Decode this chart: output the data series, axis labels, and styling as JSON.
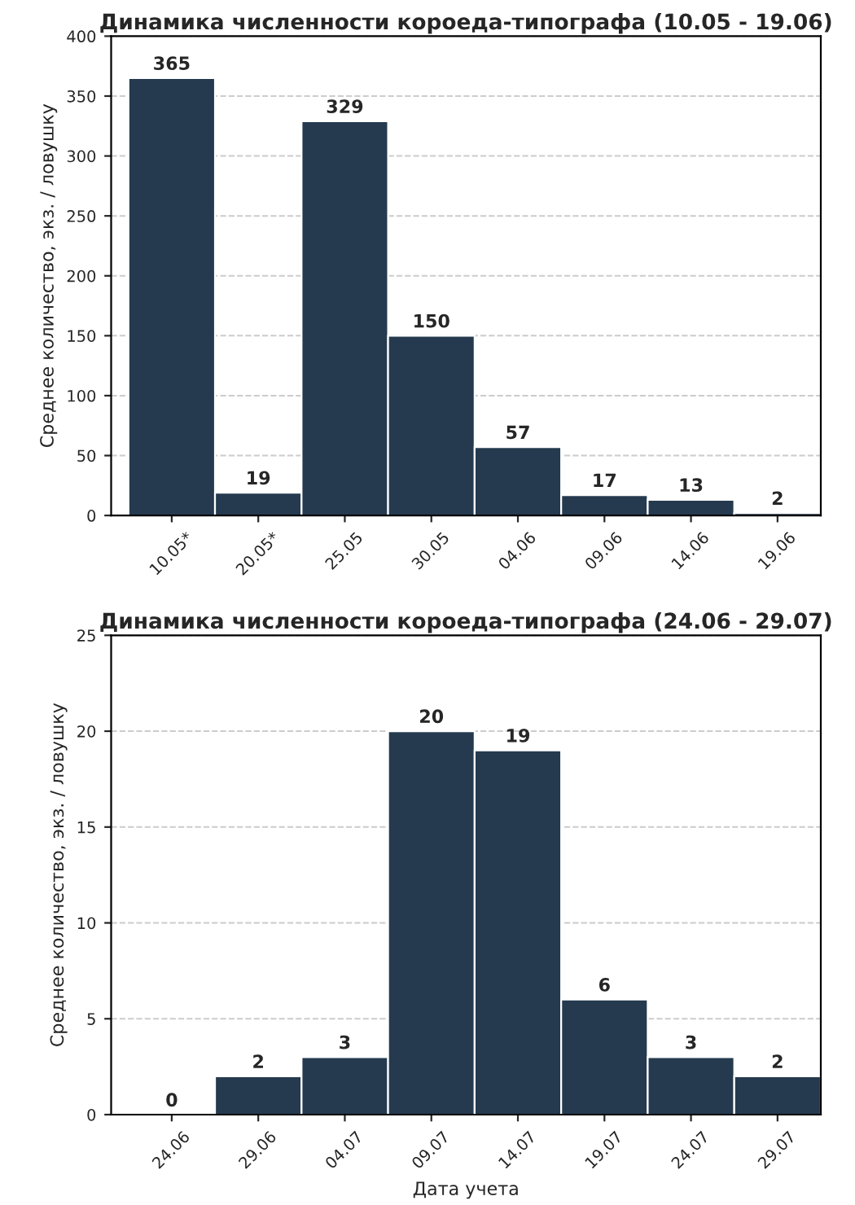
{
  "chart_data": [
    {
      "type": "bar",
      "title": "Динамика численности короеда-типографа (10.05 - 19.06)",
      "ylabel": "Среднее количество, экз. / ловушку",
      "categories": [
        "10.05*",
        "20.05*",
        "25.05",
        "30.05",
        "04.06",
        "09.06",
        "14.06",
        "19.06"
      ],
      "values": [
        365,
        19,
        329,
        150,
        57,
        17,
        13,
        2
      ],
      "color": "#253a4f",
      "ylim": [
        0,
        400
      ],
      "yticks": [
        0,
        50,
        100,
        150,
        200,
        250,
        300,
        350,
        400
      ],
      "grid": "y",
      "data_labels": true
    },
    {
      "type": "bar",
      "title": "Динамика численности короеда-типографа (24.06 - 29.07)",
      "ylabel": "Среднее количество, экз. / ловушку",
      "xlabel": "Дата учета",
      "categories": [
        "24.06",
        "29.06",
        "04.07",
        "09.07",
        "14.07",
        "19.07",
        "24.07",
        "29.07"
      ],
      "values": [
        0,
        2,
        3,
        20,
        19,
        6,
        3,
        2
      ],
      "color": "#253a4f",
      "ylim": [
        0,
        25
      ],
      "yticks": [
        0,
        5,
        10,
        15,
        20,
        25
      ],
      "grid": "y",
      "data_labels": true
    }
  ]
}
